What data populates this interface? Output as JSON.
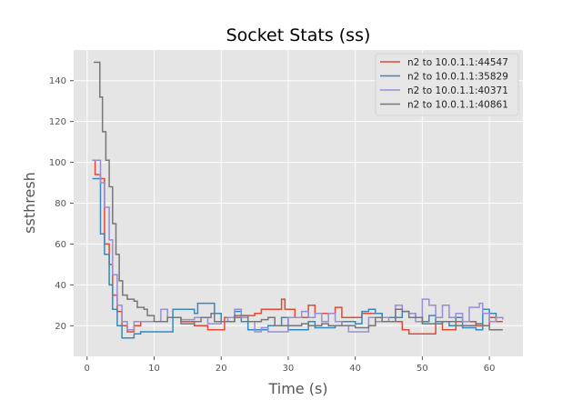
{
  "colors": {
    "background": "#E5E5E5",
    "grid": "#FFFFFF",
    "series": [
      "#E24A33",
      "#348ABD",
      "#988ED5",
      "#777777"
    ]
  },
  "chart_data": {
    "type": "line",
    "title": "Socket Stats (ss)",
    "xlabel": "Time (s)",
    "ylabel": "ssthresh",
    "xlim": [
      -2,
      65
    ],
    "ylim": [
      5,
      155
    ],
    "xticks": [
      0,
      10,
      20,
      30,
      40,
      50,
      60
    ],
    "yticks": [
      20,
      40,
      60,
      80,
      100,
      120,
      140
    ],
    "grid": true,
    "legend_position": "top-right",
    "series": [
      {
        "name": "n2 to 10.0.1.1:44547",
        "points": [
          [
            0.8,
            101
          ],
          [
            1.2,
            94
          ],
          [
            2,
            92
          ],
          [
            2.6,
            60
          ],
          [
            3.3,
            50
          ],
          [
            3.8,
            35
          ],
          [
            4.5,
            27
          ],
          [
            5.2,
            20
          ],
          [
            6,
            17
          ],
          [
            7,
            20
          ],
          [
            8,
            22
          ],
          [
            10,
            22
          ],
          [
            12,
            24
          ],
          [
            14,
            22
          ],
          [
            16,
            20
          ],
          [
            18,
            18
          ],
          [
            20,
            18
          ],
          [
            20.5,
            24
          ],
          [
            23,
            25
          ],
          [
            25,
            26
          ],
          [
            26,
            28
          ],
          [
            28.5,
            28
          ],
          [
            29,
            33
          ],
          [
            29.5,
            28
          ],
          [
            31,
            24
          ],
          [
            32.5,
            24
          ],
          [
            33,
            30
          ],
          [
            34,
            26
          ],
          [
            36,
            26
          ],
          [
            37,
            29
          ],
          [
            38,
            24
          ],
          [
            40,
            24
          ],
          [
            41,
            26
          ],
          [
            43,
            26
          ],
          [
            44,
            22
          ],
          [
            46,
            22
          ],
          [
            47,
            18
          ],
          [
            48,
            16
          ],
          [
            51,
            16
          ],
          [
            52,
            22
          ],
          [
            53,
            18
          ],
          [
            54,
            18
          ],
          [
            55,
            22
          ],
          [
            56,
            22
          ],
          [
            58,
            20
          ],
          [
            59,
            20
          ],
          [
            60,
            24
          ],
          [
            61,
            22
          ],
          [
            62,
            22
          ]
        ]
      },
      {
        "name": "n2 to 10.0.1.1:35829",
        "points": [
          [
            0.8,
            92
          ],
          [
            1.2,
            92
          ],
          [
            2,
            65
          ],
          [
            2.6,
            55
          ],
          [
            3.3,
            40
          ],
          [
            3.8,
            28
          ],
          [
            4.5,
            20
          ],
          [
            5.2,
            14
          ],
          [
            6,
            14
          ],
          [
            7,
            16
          ],
          [
            8,
            17
          ],
          [
            10,
            17
          ],
          [
            12,
            17
          ],
          [
            12.8,
            28
          ],
          [
            14,
            28
          ],
          [
            16,
            26
          ],
          [
            16.5,
            31
          ],
          [
            18,
            31
          ],
          [
            19,
            26
          ],
          [
            20,
            22
          ],
          [
            21,
            22
          ],
          [
            22,
            27
          ],
          [
            23,
            22
          ],
          [
            24,
            18
          ],
          [
            26,
            18
          ],
          [
            27,
            20
          ],
          [
            28,
            20
          ],
          [
            29,
            24
          ],
          [
            30,
            18
          ],
          [
            32,
            18
          ],
          [
            33,
            22
          ],
          [
            34,
            19
          ],
          [
            36,
            19
          ],
          [
            37,
            20
          ],
          [
            38,
            22
          ],
          [
            40,
            21
          ],
          [
            41,
            27
          ],
          [
            42,
            28
          ],
          [
            43,
            26
          ],
          [
            44,
            24
          ],
          [
            46,
            24
          ],
          [
            47,
            27
          ],
          [
            48,
            26
          ],
          [
            49,
            24
          ],
          [
            50,
            22
          ],
          [
            51,
            25
          ],
          [
            52,
            22
          ],
          [
            54,
            20
          ],
          [
            55,
            24
          ],
          [
            56,
            19
          ],
          [
            58,
            18
          ],
          [
            59,
            28
          ],
          [
            60,
            26
          ],
          [
            61,
            24
          ],
          [
            62,
            24
          ]
        ]
      },
      {
        "name": "n2 to 10.0.1.1:40371",
        "points": [
          [
            0.8,
            101
          ],
          [
            1.2,
            101
          ],
          [
            2,
            90
          ],
          [
            2.6,
            78
          ],
          [
            3.3,
            62
          ],
          [
            3.8,
            45
          ],
          [
            4.5,
            30
          ],
          [
            5.2,
            22
          ],
          [
            6,
            18
          ],
          [
            7,
            22
          ],
          [
            8,
            22
          ],
          [
            10,
            22
          ],
          [
            11,
            28
          ],
          [
            12,
            24
          ],
          [
            14,
            23
          ],
          [
            16,
            24
          ],
          [
            18,
            21
          ],
          [
            20,
            22
          ],
          [
            21,
            24
          ],
          [
            22,
            28
          ],
          [
            23,
            24
          ],
          [
            24,
            22
          ],
          [
            25,
            17
          ],
          [
            26,
            19
          ],
          [
            27,
            17
          ],
          [
            29,
            17
          ],
          [
            30,
            24
          ],
          [
            31,
            24
          ],
          [
            32,
            27
          ],
          [
            33,
            24
          ],
          [
            34,
            26
          ],
          [
            35,
            22
          ],
          [
            36,
            26
          ],
          [
            37,
            22
          ],
          [
            38,
            20
          ],
          [
            39,
            17
          ],
          [
            41,
            17
          ],
          [
            42,
            24
          ],
          [
            43,
            22
          ],
          [
            44,
            24
          ],
          [
            45,
            22
          ],
          [
            46,
            30
          ],
          [
            47,
            27
          ],
          [
            48,
            26
          ],
          [
            49,
            22
          ],
          [
            50,
            33
          ],
          [
            51,
            30
          ],
          [
            52,
            24
          ],
          [
            53,
            30
          ],
          [
            54,
            24
          ],
          [
            55,
            26
          ],
          [
            56,
            22
          ],
          [
            57,
            29
          ],
          [
            58,
            29
          ],
          [
            58.5,
            31
          ],
          [
            59,
            26
          ],
          [
            60,
            22
          ],
          [
            61,
            24
          ],
          [
            62,
            23
          ]
        ]
      },
      {
        "name": "n2 to 10.0.1.1:40861",
        "points": [
          [
            1,
            149
          ],
          [
            1.6,
            149
          ],
          [
            1.9,
            132
          ],
          [
            2.3,
            115
          ],
          [
            2.8,
            101
          ],
          [
            3.3,
            88
          ],
          [
            3.8,
            70
          ],
          [
            4.3,
            55
          ],
          [
            4.8,
            42
          ],
          [
            5.3,
            35
          ],
          [
            6,
            33
          ],
          [
            7,
            32
          ],
          [
            7.5,
            29
          ],
          [
            8.5,
            28
          ],
          [
            9,
            25
          ],
          [
            10,
            22
          ],
          [
            11,
            22
          ],
          [
            12,
            24
          ],
          [
            14,
            21
          ],
          [
            16,
            22
          ],
          [
            17,
            24
          ],
          [
            18,
            24
          ],
          [
            18.5,
            26
          ],
          [
            19,
            22
          ],
          [
            20,
            22
          ],
          [
            22,
            25
          ],
          [
            24,
            22
          ],
          [
            26,
            23
          ],
          [
            27,
            24
          ],
          [
            28,
            20
          ],
          [
            30,
            20
          ],
          [
            32,
            21
          ],
          [
            33,
            20
          ],
          [
            35,
            21
          ],
          [
            36,
            20
          ],
          [
            38,
            20
          ],
          [
            39,
            20
          ],
          [
            40,
            19
          ],
          [
            42,
            20
          ],
          [
            43,
            24
          ],
          [
            44,
            22
          ],
          [
            45,
            22
          ],
          [
            46,
            28
          ],
          [
            47,
            27
          ],
          [
            48,
            24
          ],
          [
            50,
            21
          ],
          [
            52,
            21
          ],
          [
            53,
            22
          ],
          [
            55,
            20
          ],
          [
            57,
            20
          ],
          [
            58,
            21
          ],
          [
            59,
            20
          ],
          [
            60,
            18
          ],
          [
            62,
            18
          ]
        ]
      }
    ]
  }
}
